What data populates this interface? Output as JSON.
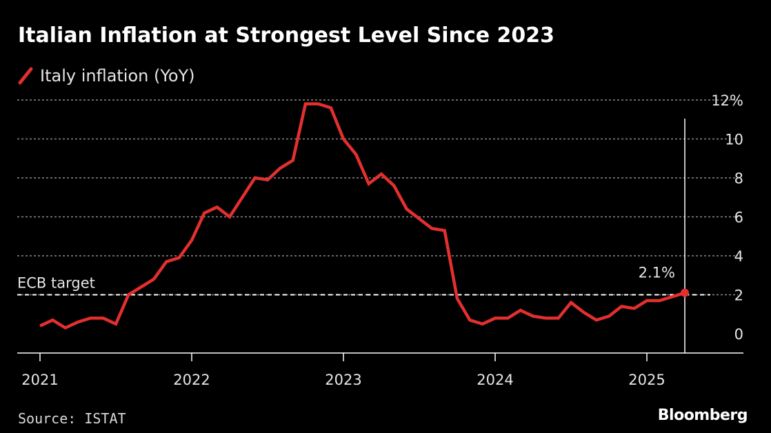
{
  "title": "Italian Inflation at Strongest Level Since 2023",
  "source": "Source: ISTAT",
  "brand": "Bloomberg",
  "colors": {
    "background": "#000000",
    "series": "#e3302f",
    "grid": "#8c8c8c",
    "text": "#e6e6e6"
  },
  "chart_data": {
    "type": "line",
    "title": "Italian Inflation at Strongest Level Since 2023",
    "xlabel": "",
    "ylabel": "",
    "x_ticks": [
      "2021",
      "2022",
      "2023",
      "2024",
      "2025"
    ],
    "y_ticks": [
      "0",
      "2",
      "4",
      "6",
      "8",
      "10",
      "12%"
    ],
    "y_tick_values": [
      0,
      2,
      4,
      6,
      8,
      10,
      12
    ],
    "ylim": [
      -1,
      12
    ],
    "xlim": [
      "2021-01",
      "2025-12"
    ],
    "grid": true,
    "legend_position": "top-left",
    "reference_line": {
      "label": "ECB target",
      "value": 2
    },
    "annotation": {
      "label": "2.1%",
      "x": "2025-04",
      "value": 2.1
    },
    "series": [
      {
        "name": "Italy inflation (YoY)",
        "x": [
          "2021-01",
          "2021-02",
          "2021-03",
          "2021-04",
          "2021-05",
          "2021-06",
          "2021-07",
          "2021-08",
          "2021-09",
          "2021-10",
          "2021-11",
          "2021-12",
          "2022-01",
          "2022-02",
          "2022-03",
          "2022-04",
          "2022-05",
          "2022-06",
          "2022-07",
          "2022-08",
          "2022-09",
          "2022-10",
          "2022-11",
          "2022-12",
          "2023-01",
          "2023-02",
          "2023-03",
          "2023-04",
          "2023-05",
          "2023-06",
          "2023-07",
          "2023-08",
          "2023-09",
          "2023-10",
          "2023-11",
          "2023-12",
          "2024-01",
          "2024-02",
          "2024-03",
          "2024-04",
          "2024-05",
          "2024-06",
          "2024-07",
          "2024-08",
          "2024-09",
          "2024-10",
          "2024-11",
          "2024-12",
          "2025-01",
          "2025-02",
          "2025-03",
          "2025-04"
        ],
        "values": [
          0.4,
          0.7,
          0.3,
          0.6,
          0.8,
          0.8,
          0.5,
          2.0,
          2.4,
          2.8,
          3.7,
          3.9,
          4.8,
          6.2,
          6.5,
          6.0,
          7.0,
          8.0,
          7.9,
          8.5,
          8.9,
          11.8,
          11.8,
          11.6,
          10.0,
          9.2,
          7.7,
          8.2,
          7.6,
          6.4,
          5.9,
          5.4,
          5.3,
          1.8,
          0.7,
          0.5,
          0.8,
          0.8,
          1.2,
          0.9,
          0.8,
          0.8,
          1.6,
          1.1,
          0.7,
          0.9,
          1.4,
          1.3,
          1.7,
          1.7,
          1.9,
          2.1
        ]
      }
    ]
  }
}
